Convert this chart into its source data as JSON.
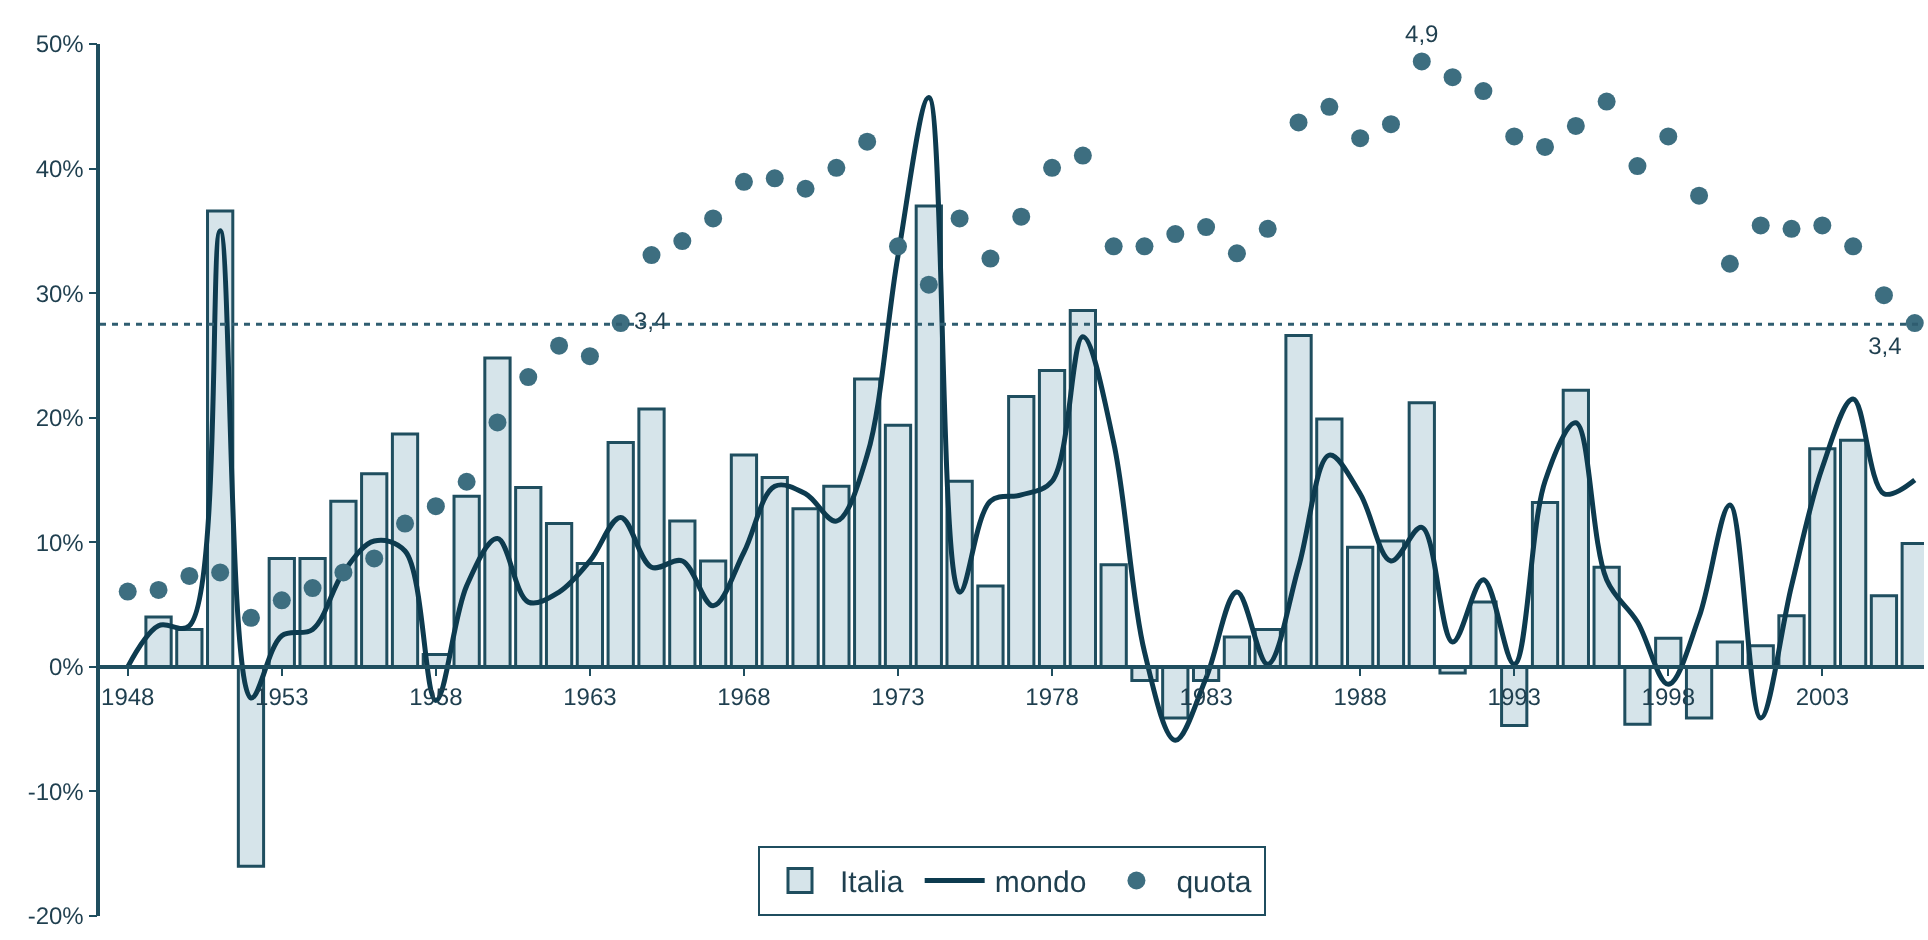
{
  "chart_data": {
    "type": "bar",
    "x": [
      1948,
      1949,
      1950,
      1951,
      1952,
      1953,
      1954,
      1955,
      1956,
      1957,
      1958,
      1959,
      1960,
      1961,
      1962,
      1963,
      1964,
      1965,
      1966,
      1967,
      1968,
      1969,
      1970,
      1971,
      1972,
      1973,
      1974,
      1975,
      1976,
      1977,
      1978,
      1979,
      1980,
      1981,
      1982,
      1983,
      1984,
      1985,
      1986,
      1987,
      1988,
      1989,
      1990,
      1991,
      1992,
      1993,
      1994,
      1995,
      1996,
      1997,
      1998,
      1999,
      2000,
      2001,
      2002,
      2003,
      2004,
      2005,
      2006
    ],
    "series": [
      {
        "name": "Italia",
        "color": "#d6e4ea",
        "values": [
          null,
          4,
          3,
          36.6,
          -16,
          8.7,
          8.7,
          13.3,
          15.5,
          18.7,
          1,
          13.7,
          24.8,
          14.4,
          11.5,
          8.3,
          18,
          20.7,
          11.7,
          8.5,
          17,
          15.2,
          12.7,
          14.5,
          23.1,
          19.4,
          37,
          14.9,
          6.5,
          21.7,
          23.8,
          28.6,
          8.2,
          -1.1,
          -4.1,
          -1.1,
          2.4,
          3,
          26.6,
          19.9,
          9.6,
          10.1,
          21.2,
          -0.5,
          5.2,
          -4.7,
          13.2,
          22.2,
          8,
          -4.6,
          2.3,
          -4.1,
          2,
          1.7,
          4.1,
          17.5,
          18.2,
          5.7,
          9.9
        ]
      },
      {
        "name": "mondo",
        "type": "line",
        "color": "#0d3b4f",
        "values": [
          0,
          3.3,
          3.3,
          35,
          -2.5,
          2.5,
          3,
          7.6,
          10.1,
          9.3,
          -2.7,
          6.5,
          10.3,
          5.2,
          6,
          8.5,
          12,
          8,
          8.5,
          4.9,
          9.2,
          14.5,
          13.9,
          11.7,
          17,
          33,
          45.7,
          6,
          13.3,
          13.8,
          14.9,
          26.5,
          18,
          1.2,
          -5.9,
          -0.9,
          6,
          0.2,
          8,
          17,
          13.9,
          8.5,
          11.2,
          2,
          7,
          0.2,
          14.9,
          19.6,
          7,
          3.6,
          -1.4,
          4,
          13,
          -4.1,
          6.5,
          16,
          21.5,
          13.9,
          15
        ]
      },
      {
        "name": "quota",
        "type": "scatter",
        "axis": "y2",
        "marker": "circle",
        "color": "#3d6e80",
        "values": [
          1.86,
          1.87,
          1.95,
          1.97,
          1.71,
          1.81,
          1.88,
          1.97,
          2.05,
          2.25,
          2.35,
          2.49,
          2.83,
          3.09,
          3.27,
          3.21,
          3.4,
          3.79,
          3.87,
          4.0,
          4.21,
          4.23,
          4.17,
          4.29,
          4.44,
          3.84,
          3.62,
          4.0,
          3.77,
          4.01,
          4.29,
          4.36,
          3.84,
          3.84,
          3.91,
          3.95,
          3.8,
          3.94,
          4.55,
          4.64,
          4.46,
          4.54,
          4.9,
          4.81,
          4.73,
          4.47,
          4.41,
          4.53,
          4.67,
          4.3,
          4.47,
          4.13,
          3.74,
          3.96,
          3.94,
          3.96,
          3.84,
          3.56,
          3.4
        ],
        "value_labels": [
          null,
          null,
          null,
          null,
          null,
          null,
          null,
          null,
          null,
          null,
          null,
          null,
          null,
          null,
          null,
          null,
          "3,4",
          null,
          null,
          null,
          null,
          null,
          null,
          null,
          null,
          null,
          null,
          null,
          null,
          null,
          null,
          null,
          null,
          null,
          null,
          null,
          null,
          null,
          null,
          null,
          null,
          null,
          "4,9",
          null,
          null,
          null,
          null,
          null,
          null,
          null,
          null,
          null,
          null,
          null,
          null,
          null,
          null,
          null,
          "3,4"
        ]
      }
    ],
    "xlim": [
      1947.1,
      2006.3
    ],
    "xticks": [
      1948,
      1953,
      1958,
      1963,
      1968,
      1973,
      1978,
      1983,
      1988,
      1993,
      1998,
      2003
    ],
    "ylim": [
      -20,
      50
    ],
    "yticks": [
      {
        "value": -20,
        "label": "-20%"
      },
      {
        "value": -10,
        "label": "-10%"
      },
      {
        "value": 0,
        "label": "0%"
      },
      {
        "value": 10,
        "label": "10%"
      },
      {
        "value": 20,
        "label": "20%"
      },
      {
        "value": 30,
        "label": "30%"
      },
      {
        "value": 40,
        "label": "40%"
      },
      {
        "value": 50,
        "label": "50%"
      }
    ],
    "y2lim": [
      0,
      5
    ],
    "ref_lines": [
      {
        "axis": "y",
        "value": 27.5,
        "color": "#2f5d70",
        "line_style": "dotted"
      }
    ],
    "legend": "bottom"
  }
}
